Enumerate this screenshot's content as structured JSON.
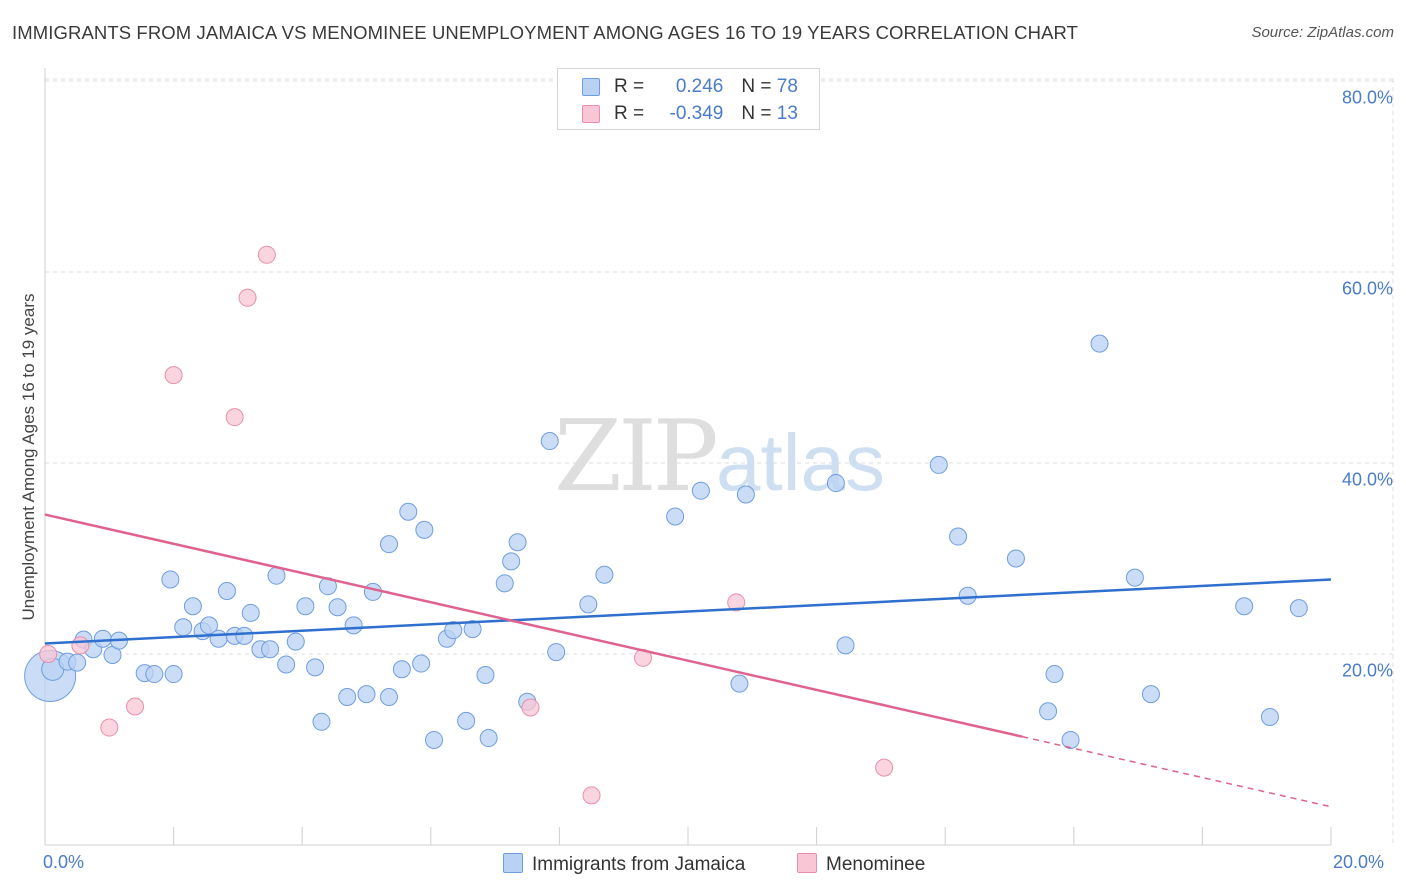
{
  "title": "IMMIGRANTS FROM JAMAICA VS MENOMINEE UNEMPLOYMENT AMONG AGES 16 TO 19 YEARS CORRELATION CHART",
  "source": "Source: ZipAtlas.com",
  "watermark": {
    "zip": "ZIP",
    "atlas": "atlas"
  },
  "colors": {
    "blue_fill": "#b9d2f3",
    "blue_stroke": "#6f9de0",
    "blue_line": "#2f6fce",
    "pink_fill": "#f8c6d4",
    "pink_stroke": "#e98fab",
    "pink_line": "#e0628e",
    "tick_text": "#4a7cc9",
    "grid": "#dcdcdc"
  },
  "legend": [
    {
      "r_label": "R = ",
      "r_value": "0.246",
      "n_label": "N = ",
      "n_value": "78"
    },
    {
      "r_label": "R = ",
      "r_value": "-0.349",
      "n_label": "N = ",
      "n_value": "13"
    }
  ],
  "bottom_legend": [
    "Immigrants from Jamaica",
    "Menominee"
  ],
  "chart_data": {
    "type": "scatter",
    "title": "IMMIGRANTS FROM JAMAICA VS MENOMINEE UNEMPLOYMENT AMONG AGES 16 TO 19 YEARS CORRELATION CHART",
    "xlabel": "",
    "ylabel": "Unemployment Among Ages 16 to 19 years",
    "xlim": [
      0,
      20
    ],
    "ylim": [
      0,
      82
    ],
    "x_ticks": [
      "0.0%",
      "20.0%"
    ],
    "y_ticks": [
      {
        "value": 20,
        "label": "20.0%"
      },
      {
        "value": 40,
        "label": "40.0%"
      },
      {
        "value": 60,
        "label": "60.0%"
      },
      {
        "value": 80,
        "label": "80.0%"
      }
    ],
    "grid": true,
    "legend_position": "top-center",
    "series": [
      {
        "name": "Immigrants from Jamaica",
        "color": "blue",
        "trend": {
          "x": [
            0,
            20
          ],
          "y": [
            21.1,
            27.8
          ],
          "dashed_from": null
        },
        "points": [
          [
            0.08,
            17.7,
            3
          ],
          [
            0.12,
            18.4,
            1.3
          ],
          [
            0.35,
            19.2,
            1
          ],
          [
            0.5,
            19.1,
            1
          ],
          [
            0.6,
            21.5,
            1
          ],
          [
            0.75,
            20.5,
            1
          ],
          [
            0.9,
            21.6,
            1
          ],
          [
            1.05,
            19.9,
            1
          ],
          [
            1.15,
            21.4,
            1
          ],
          [
            1.55,
            18.0,
            1
          ],
          [
            1.7,
            17.9,
            1
          ],
          [
            1.95,
            27.8,
            1
          ],
          [
            2.0,
            17.9,
            1
          ],
          [
            2.15,
            22.8,
            1
          ],
          [
            2.3,
            25.0,
            1
          ],
          [
            2.45,
            22.4,
            1
          ],
          [
            2.55,
            23.0,
            1
          ],
          [
            2.7,
            21.6,
            1
          ],
          [
            2.83,
            26.6,
            1
          ],
          [
            2.95,
            21.9,
            1
          ],
          [
            3.1,
            21.9,
            1
          ],
          [
            3.2,
            24.3,
            1
          ],
          [
            3.35,
            20.5,
            1
          ],
          [
            3.5,
            20.5,
            1
          ],
          [
            3.6,
            28.2,
            1
          ],
          [
            3.75,
            18.9,
            1
          ],
          [
            3.9,
            21.3,
            1
          ],
          [
            4.05,
            25.0,
            1
          ],
          [
            4.2,
            18.6,
            1
          ],
          [
            4.3,
            12.9,
            1
          ],
          [
            4.4,
            27.1,
            1
          ],
          [
            4.55,
            24.9,
            1
          ],
          [
            4.7,
            15.5,
            1
          ],
          [
            4.8,
            23.0,
            1
          ],
          [
            5.0,
            15.8,
            1
          ],
          [
            5.1,
            26.5,
            1
          ],
          [
            5.35,
            31.5,
            1
          ],
          [
            5.35,
            15.5,
            1
          ],
          [
            5.55,
            18.4,
            1
          ],
          [
            5.65,
            34.9,
            1
          ],
          [
            5.85,
            19.0,
            1
          ],
          [
            5.9,
            33.0,
            1
          ],
          [
            6.05,
            11.0,
            1
          ],
          [
            6.25,
            21.6,
            1
          ],
          [
            6.35,
            22.5,
            1
          ],
          [
            6.55,
            13.0,
            1
          ],
          [
            6.65,
            22.6,
            1
          ],
          [
            6.85,
            17.8,
            1
          ],
          [
            6.9,
            11.2,
            1
          ],
          [
            7.15,
            27.4,
            1
          ],
          [
            7.25,
            29.7,
            1
          ],
          [
            7.35,
            31.7,
            1
          ],
          [
            7.5,
            15.0,
            1
          ],
          [
            7.85,
            42.3,
            1
          ],
          [
            7.95,
            20.2,
            1
          ],
          [
            8.45,
            25.2,
            1
          ],
          [
            8.7,
            28.3,
            1
          ],
          [
            9.8,
            34.4,
            1
          ],
          [
            10.2,
            37.1,
            1
          ],
          [
            10.8,
            16.9,
            1
          ],
          [
            10.9,
            36.7,
            1
          ],
          [
            12.3,
            37.9,
            1
          ],
          [
            12.45,
            20.9,
            1
          ],
          [
            13.9,
            39.8,
            1
          ],
          [
            14.2,
            32.3,
            1
          ],
          [
            14.35,
            26.1,
            1
          ],
          [
            15.1,
            30.0,
            1
          ],
          [
            15.6,
            14.0,
            1
          ],
          [
            15.7,
            17.9,
            1
          ],
          [
            15.95,
            11.0,
            1
          ],
          [
            16.4,
            52.5,
            1
          ],
          [
            16.95,
            28.0,
            1
          ],
          [
            17.2,
            15.8,
            1
          ],
          [
            18.65,
            25.0,
            1
          ],
          [
            19.05,
            13.4,
            1
          ],
          [
            19.5,
            24.8,
            1
          ]
        ]
      },
      {
        "name": "Menominee",
        "color": "pink",
        "trend": {
          "x": [
            0,
            20
          ],
          "y": [
            34.6,
            4.0
          ],
          "dashed_from": 15.2
        },
        "points": [
          [
            0.05,
            20.0,
            1
          ],
          [
            0.55,
            20.9,
            1
          ],
          [
            1.0,
            12.3,
            1
          ],
          [
            1.4,
            14.5,
            1
          ],
          [
            2.0,
            49.2,
            1
          ],
          [
            2.95,
            44.8,
            1
          ],
          [
            3.15,
            57.3,
            1
          ],
          [
            3.45,
            61.8,
            1
          ],
          [
            7.55,
            14.4,
            1
          ],
          [
            8.5,
            5.2,
            1
          ],
          [
            9.3,
            19.6,
            1
          ],
          [
            10.75,
            25.4,
            1
          ],
          [
            13.05,
            8.1,
            1
          ]
        ]
      }
    ]
  }
}
